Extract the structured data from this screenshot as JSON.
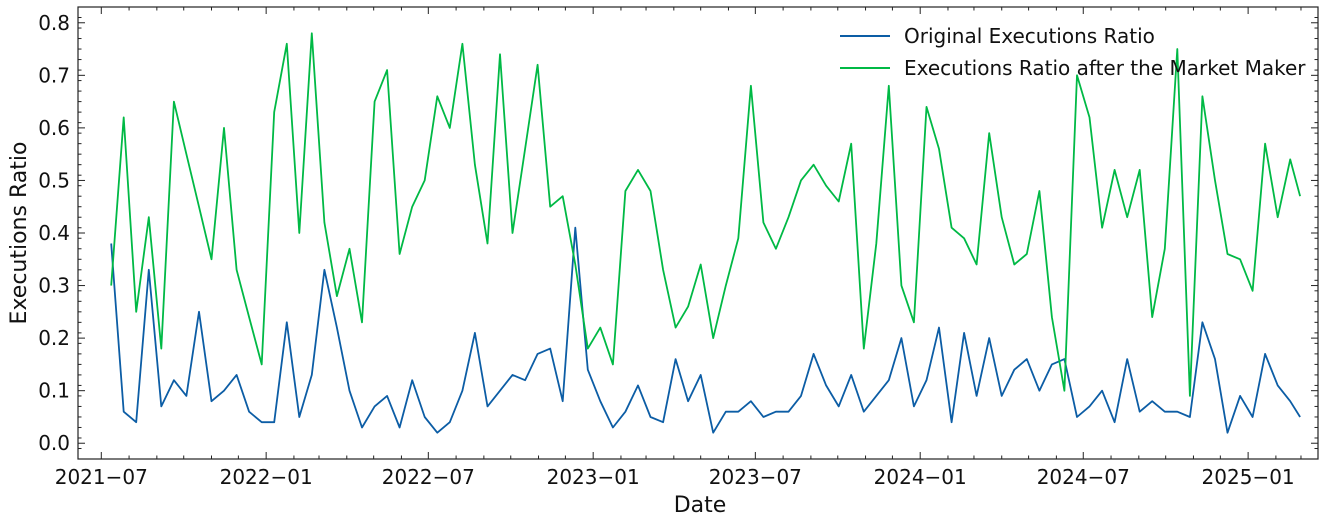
{
  "chart_data": {
    "type": "line",
    "title": "",
    "xlabel": "Date",
    "ylabel": "Executions Ratio",
    "xlim": [
      "2021-06-05",
      "2025-03-20"
    ],
    "ylim": [
      -0.03,
      0.83
    ],
    "grid": false,
    "legend_position": "top-right",
    "x_ticks": [
      "2021-07-01",
      "2022-01-01",
      "2022-07-01",
      "2023-01-01",
      "2023-07-01",
      "2024-01-01",
      "2024-07-01",
      "2025-01-01"
    ],
    "x_tick_labels": [
      "2021−07",
      "2022−01",
      "2022−07",
      "2023−01",
      "2023−07",
      "2024−01",
      "2024−07",
      "2025−01"
    ],
    "y_ticks": [
      0.0,
      0.1,
      0.2,
      0.3,
      0.4,
      0.5,
      0.6,
      0.7,
      0.8
    ],
    "y_tick_labels": [
      "0.0",
      "0.1",
      "0.2",
      "0.3",
      "0.4",
      "0.5",
      "0.6",
      "0.7",
      "0.8"
    ],
    "x": [
      "2021-07-12",
      "2021-07-26",
      "2021-08-09",
      "2021-08-23",
      "2021-09-06",
      "2021-09-20",
      "2021-10-04",
      "2021-10-18",
      "2021-11-01",
      "2021-11-15",
      "2021-11-29",
      "2021-12-13",
      "2021-12-27",
      "2022-01-10",
      "2022-01-24",
      "2022-02-07",
      "2022-02-21",
      "2022-03-07",
      "2022-03-21",
      "2022-04-04",
      "2022-04-18",
      "2022-05-02",
      "2022-05-16",
      "2022-05-30",
      "2022-06-13",
      "2022-06-27",
      "2022-07-11",
      "2022-07-25",
      "2022-08-08",
      "2022-08-22",
      "2022-09-05",
      "2022-09-19",
      "2022-10-03",
      "2022-10-17",
      "2022-10-31",
      "2022-11-14",
      "2022-11-28",
      "2022-12-12",
      "2022-12-26",
      "2023-01-09",
      "2023-01-23",
      "2023-02-06",
      "2023-02-20",
      "2023-03-06",
      "2023-03-20",
      "2023-04-03",
      "2023-04-17",
      "2023-05-01",
      "2023-05-15",
      "2023-05-29",
      "2023-06-12",
      "2023-06-26",
      "2023-07-10",
      "2023-07-24",
      "2023-08-07",
      "2023-08-21",
      "2023-09-04",
      "2023-09-18",
      "2023-10-02",
      "2023-10-16",
      "2023-10-30",
      "2023-11-13",
      "2023-11-27",
      "2023-12-11",
      "2023-12-25",
      "2024-01-08",
      "2024-01-22",
      "2024-02-05",
      "2024-02-19",
      "2024-03-04",
      "2024-03-18",
      "2024-04-01",
      "2024-04-15",
      "2024-04-29",
      "2024-05-13",
      "2024-05-27",
      "2024-06-10",
      "2024-06-24",
      "2024-07-08",
      "2024-07-22",
      "2024-08-05",
      "2024-08-19",
      "2024-09-02",
      "2024-09-16",
      "2024-09-30",
      "2024-10-14",
      "2024-10-28",
      "2024-11-11",
      "2024-11-25",
      "2024-12-09",
      "2024-12-23",
      "2025-01-06",
      "2025-01-20",
      "2025-02-03",
      "2025-02-17",
      "2025-02-28"
    ],
    "series": [
      {
        "name": "Original Executions Ratio",
        "color": "#0c5da5",
        "values": [
          0.38,
          0.06,
          0.04,
          0.33,
          0.07,
          0.12,
          0.09,
          0.25,
          0.08,
          0.1,
          0.13,
          0.06,
          0.04,
          0.04,
          0.23,
          0.05,
          0.13,
          0.33,
          0.22,
          0.1,
          0.03,
          0.07,
          0.09,
          0.03,
          0.12,
          0.05,
          0.02,
          0.04,
          0.1,
          0.21,
          0.07,
          0.1,
          0.13,
          0.12,
          0.17,
          0.18,
          0.08,
          0.41,
          0.14,
          0.08,
          0.03,
          0.06,
          0.11,
          0.05,
          0.04,
          0.16,
          0.08,
          0.13,
          0.02,
          0.06,
          0.06,
          0.08,
          0.05,
          0.06,
          0.06,
          0.09,
          0.17,
          0.11,
          0.07,
          0.13,
          0.06,
          0.09,
          0.12,
          0.2,
          0.07,
          0.12,
          0.22,
          0.04,
          0.21,
          0.09,
          0.2,
          0.09,
          0.14,
          0.16,
          0.1,
          0.15,
          0.16,
          0.05,
          0.07,
          0.1,
          0.04,
          0.16,
          0.06,
          0.08,
          0.06,
          0.06,
          0.05,
          0.23,
          0.16,
          0.02,
          0.09,
          0.05,
          0.17,
          0.11,
          0.08,
          0.05
        ]
      },
      {
        "name": "Executions Ratio after the Market Maker",
        "color": "#00b945",
        "values": [
          0.3,
          0.62,
          0.25,
          0.43,
          0.18,
          0.65,
          0.55,
          0.45,
          0.35,
          0.6,
          0.33,
          0.24,
          0.15,
          0.63,
          0.76,
          0.4,
          0.78,
          0.42,
          0.28,
          0.37,
          0.23,
          0.65,
          0.71,
          0.36,
          0.45,
          0.5,
          0.66,
          0.6,
          0.76,
          0.53,
          0.38,
          0.74,
          0.4,
          0.56,
          0.72,
          0.45,
          0.47,
          0.34,
          0.18,
          0.22,
          0.15,
          0.48,
          0.52,
          0.48,
          0.33,
          0.22,
          0.26,
          0.34,
          0.2,
          0.3,
          0.39,
          0.68,
          0.42,
          0.37,
          0.43,
          0.5,
          0.53,
          0.49,
          0.46,
          0.57,
          0.18,
          0.38,
          0.68,
          0.3,
          0.23,
          0.64,
          0.56,
          0.41,
          0.39,
          0.34,
          0.59,
          0.43,
          0.34,
          0.36,
          0.48,
          0.24,
          0.1,
          0.7,
          0.62,
          0.41,
          0.52,
          0.43,
          0.52,
          0.24,
          0.37,
          0.75,
          0.09,
          0.66,
          0.5,
          0.36,
          0.35,
          0.29,
          0.57,
          0.43,
          0.54,
          0.47
        ]
      }
    ]
  }
}
